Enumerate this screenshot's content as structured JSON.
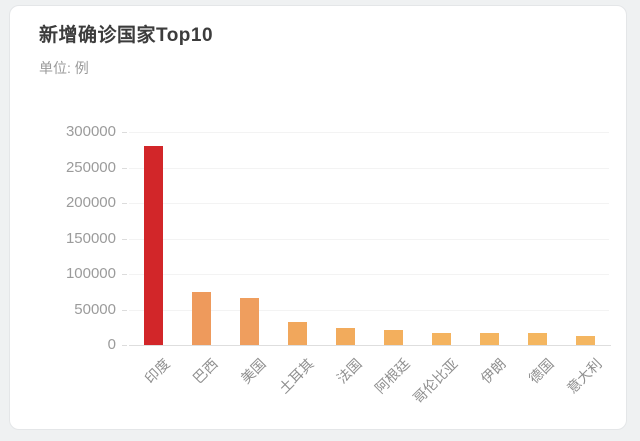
{
  "card": {
    "title": "新增确诊国家Top10",
    "subtitle": "单位: 例"
  },
  "chart_data": {
    "type": "bar",
    "title": "新增确诊国家Top10",
    "subtitle_unit": "单位: 例",
    "categories": [
      "印度",
      "巴西",
      "美国",
      "土耳其",
      "法国",
      "阿根廷",
      "哥伦比亚",
      "伊朗",
      "德国",
      "意大利"
    ],
    "values": [
      280000,
      74000,
      66000,
      32000,
      24000,
      21000,
      17000,
      17000,
      17000,
      13000
    ],
    "bar_colors": [
      "#d22629",
      "#ee9a5c",
      "#ef9e5e",
      "#f1a75c",
      "#f2ab5c",
      "#f3af5d",
      "#f4b35f",
      "#f4b560",
      "#f4b660",
      "#f4b661"
    ],
    "highlight_color": "#d22629",
    "base_orange_color": "#ee9a5c",
    "xlabel": "",
    "ylabel": "",
    "ylim": [
      0,
      300000
    ],
    "ytick_step": 50000,
    "ytick_labels": [
      "0",
      "50000",
      "100000",
      "150000",
      "200000",
      "250000",
      "300000"
    ],
    "grid": true,
    "legend": false,
    "xlabel_rotation_deg": 45,
    "axis_text_color": "#9b9b9b",
    "gridline_color": "#f3f3f3",
    "axisline_color": "#dedede"
  }
}
